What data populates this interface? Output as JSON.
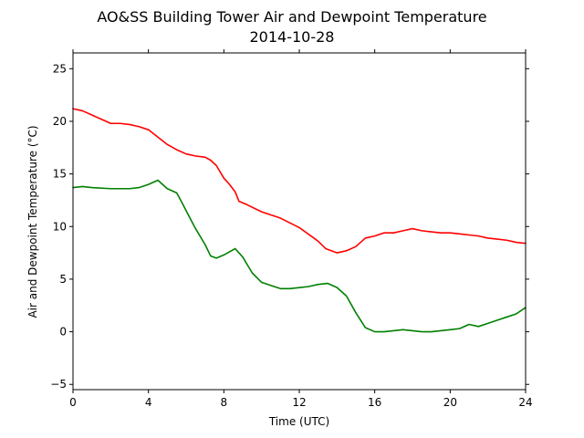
{
  "chart_data": {
    "type": "line",
    "title": "AO&SS Building Tower Air and Dewpoint Temperature",
    "subtitle": "2014-10-28",
    "xlabel": "Time (UTC)",
    "ylabel": "Air and Dewpoint Temperature (°C)",
    "xlim": [
      0,
      24
    ],
    "ylim": [
      -5.5,
      26.5
    ],
    "xticks": [
      0,
      4,
      8,
      12,
      16,
      20,
      24
    ],
    "yticks": [
      -5,
      0,
      5,
      10,
      15,
      20,
      25
    ],
    "grid": false,
    "series": [
      {
        "color": "#ff0000",
        "x": [
          0,
          0.5,
          1,
          1.5,
          2,
          2.5,
          3,
          3.5,
          4,
          4.5,
          5,
          5.5,
          6,
          6.5,
          7,
          7.3,
          7.6,
          8,
          8.3,
          8.6,
          8.8,
          9.2,
          10,
          11,
          12,
          12.7,
          13,
          13.4,
          14,
          14.5,
          15,
          15.5,
          16,
          16.5,
          17,
          17.5,
          18,
          18.5,
          19,
          19.5,
          20,
          20.5,
          21,
          21.5,
          22,
          22.5,
          23,
          23.5,
          24
        ],
        "values": [
          21.2,
          21.0,
          20.6,
          20.2,
          19.8,
          19.8,
          19.7,
          19.5,
          19.2,
          18.5,
          17.8,
          17.3,
          16.9,
          16.7,
          16.6,
          16.3,
          15.8,
          14.6,
          14.0,
          13.3,
          12.4,
          12.1,
          11.4,
          10.8,
          9.9,
          9.0,
          8.6,
          7.9,
          7.5,
          7.7,
          8.1,
          8.9,
          9.1,
          9.4,
          9.4,
          9.6,
          9.8,
          9.6,
          9.5,
          9.4,
          9.4,
          9.3,
          9.2,
          9.1,
          8.9,
          8.8,
          8.7,
          8.5,
          8.4
        ]
      },
      {
        "color": "#008000",
        "x": [
          0,
          0.5,
          1,
          2,
          3,
          3.5,
          4,
          4.5,
          5,
          5.5,
          5.8,
          6,
          6.5,
          7,
          7.3,
          7.6,
          8,
          8.3,
          8.6,
          9,
          9.5,
          10,
          10.5,
          11,
          11.5,
          12,
          12.5,
          13,
          13.5,
          14,
          14.5,
          15,
          15.5,
          16,
          16.5,
          17,
          17.5,
          18,
          18.5,
          19,
          19.5,
          20,
          20.5,
          21,
          21.5,
          22,
          22.5,
          23,
          23.5,
          24
        ],
        "values": [
          13.7,
          13.8,
          13.7,
          13.6,
          13.6,
          13.7,
          14.0,
          14.4,
          13.6,
          13.2,
          12.2,
          11.5,
          9.8,
          8.3,
          7.2,
          7.0,
          7.3,
          7.6,
          7.9,
          7.1,
          5.6,
          4.7,
          4.4,
          4.1,
          4.1,
          4.2,
          4.3,
          4.5,
          4.6,
          4.2,
          3.4,
          1.8,
          0.4,
          0.0,
          0.0,
          0.1,
          0.2,
          0.1,
          0.0,
          0.0,
          0.1,
          0.2,
          0.3,
          0.7,
          0.5,
          0.8,
          1.1,
          1.4,
          1.7,
          2.3
        ]
      }
    ]
  }
}
